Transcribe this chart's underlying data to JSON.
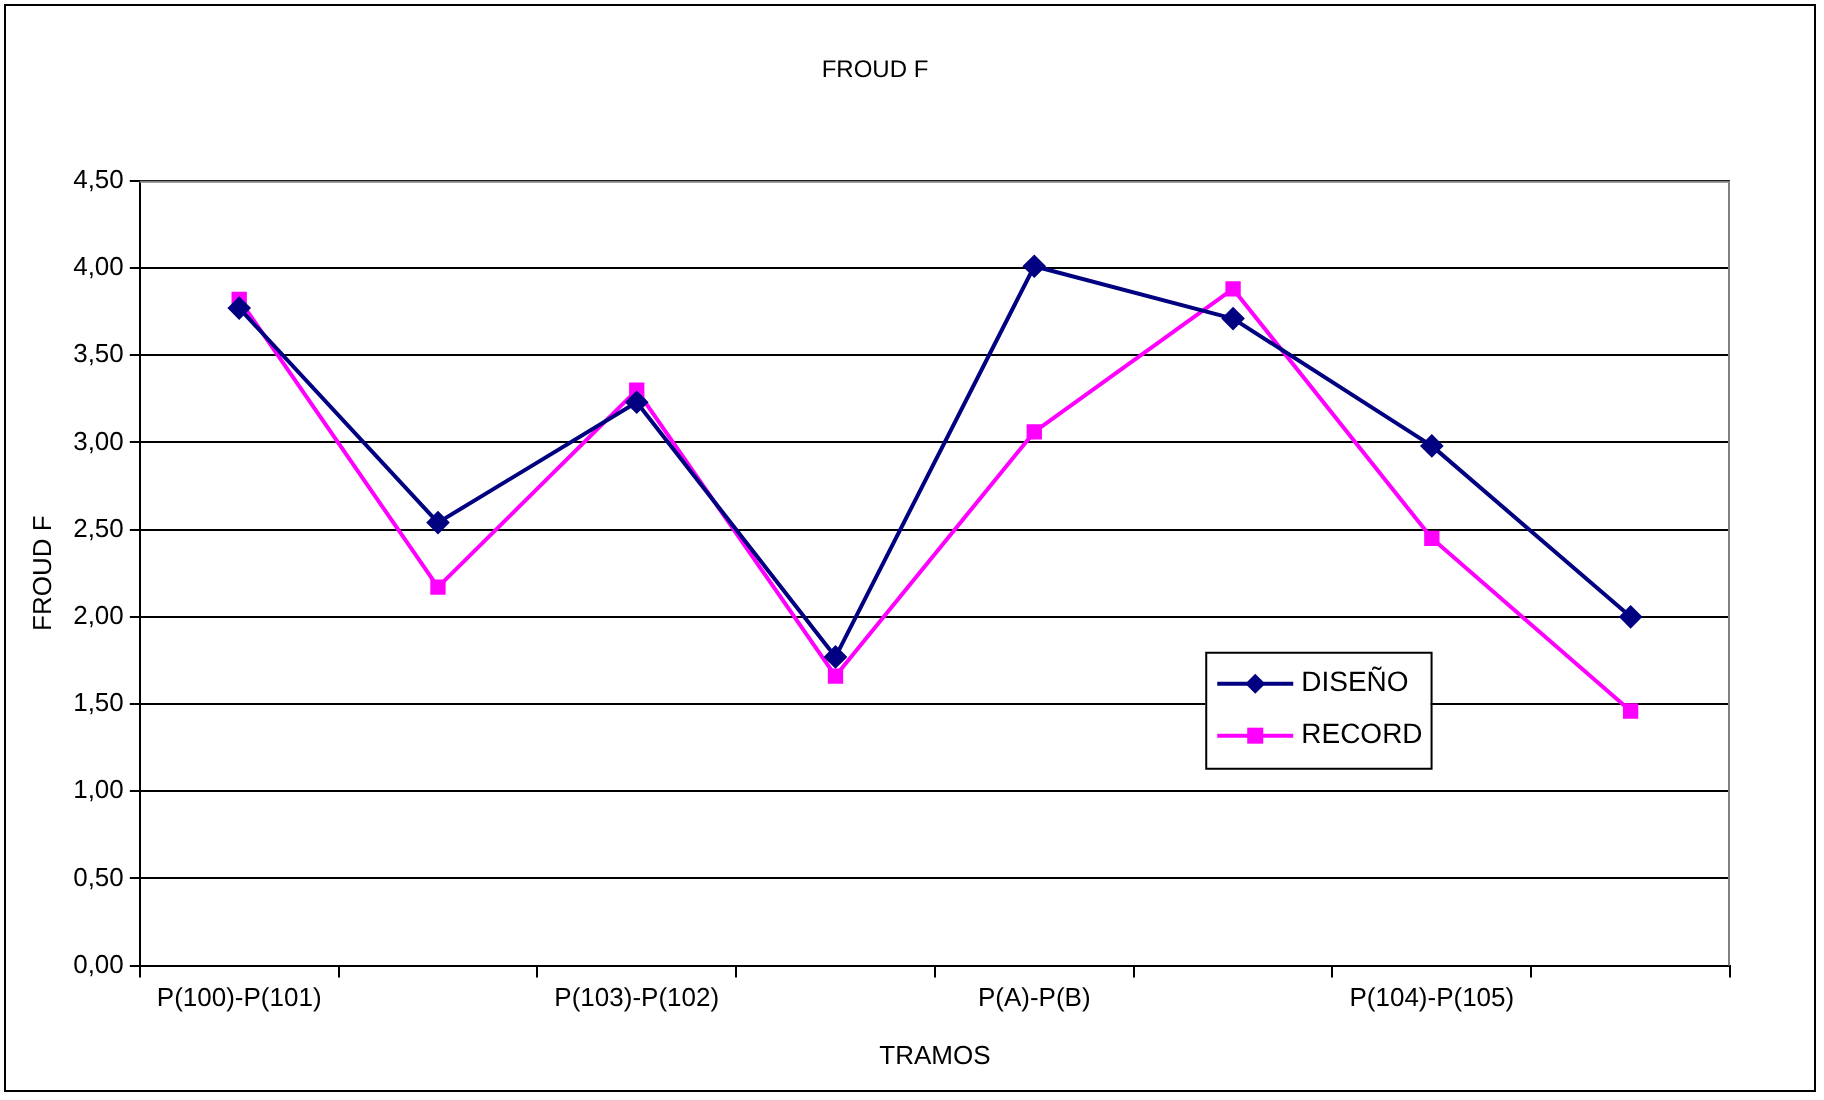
{
  "chart_data": {
    "type": "line",
    "title": "FROUD F",
    "xlabel": "TRAMOS",
    "ylabel": "FROUD F",
    "categories": [
      "P(100)-P(101)",
      null,
      "P(103)-P(102)",
      null,
      "P(A)-P(B)",
      null,
      "P(104)-P(105)",
      null
    ],
    "series": [
      {
        "name": "DISEÑO",
        "color": "#000080",
        "marker": "diamond",
        "values": [
          3.77,
          2.54,
          3.23,
          1.77,
          4.01,
          3.71,
          2.98,
          2.0
        ]
      },
      {
        "name": "RECORD",
        "color": "#ff00ff",
        "marker": "square",
        "values": [
          3.82,
          2.17,
          3.3,
          1.66,
          3.06,
          3.88,
          2.45,
          1.46
        ]
      }
    ],
    "ylim": [
      0,
      4.5
    ],
    "yticks": [
      {
        "value": 0,
        "label": "0,00"
      },
      {
        "value": 0.5,
        "label": "0,50"
      },
      {
        "value": 1,
        "label": "1,00"
      },
      {
        "value": 1.5,
        "label": "1,50"
      },
      {
        "value": 2,
        "label": "2,00"
      },
      {
        "value": 2.5,
        "label": "2,50"
      },
      {
        "value": 3,
        "label": "3,00"
      },
      {
        "value": 3.5,
        "label": "3,50"
      },
      {
        "value": 4,
        "label": "4,00"
      },
      {
        "value": 4.5,
        "label": "4,50"
      }
    ],
    "grid": "y",
    "legend": "bottom right",
    "line_style": "solid"
  }
}
